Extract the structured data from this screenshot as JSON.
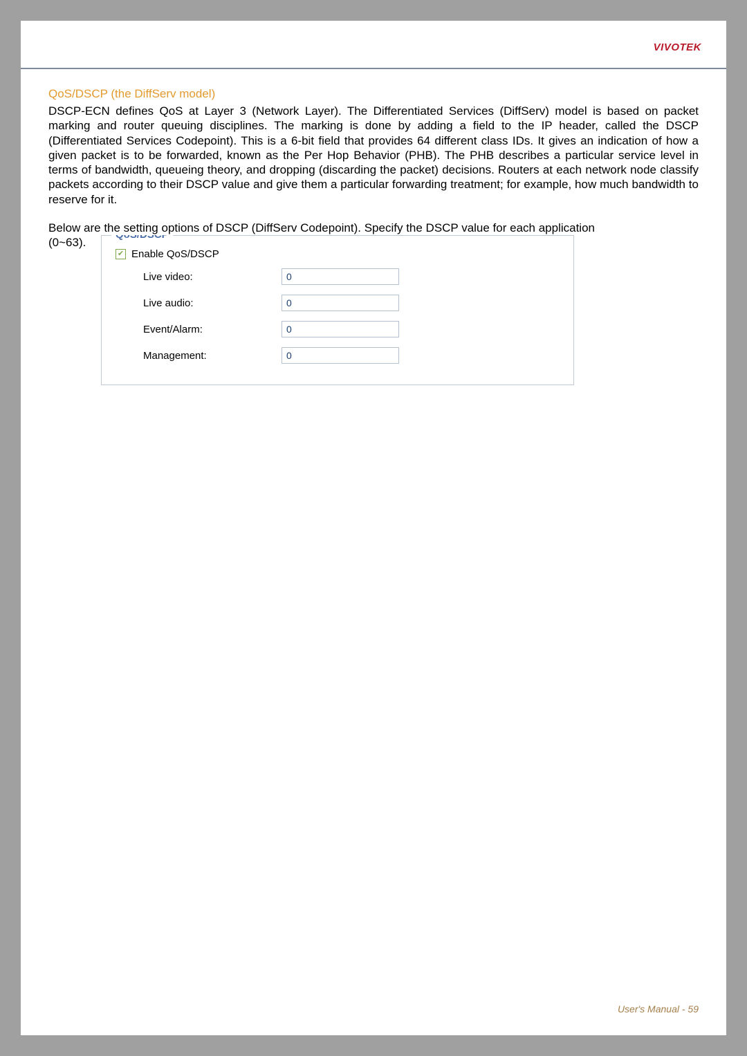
{
  "colors": {
    "page_bg": "#a0a0a0",
    "sheet_bg": "#ffffff",
    "brand": "#ba1b2b",
    "header_rule": "#7d8aa0",
    "heading": "#e39a2f",
    "body_text": "#000000",
    "fieldset_border": "#bfc8d0",
    "legend": "#4b6ea9",
    "checkbox_border": "#7fa84d",
    "checkmark": "#7fa84d",
    "input_border": "#b3c1d1",
    "input_text": "#1a3f6e",
    "footer": "#a47f4a"
  },
  "header": {
    "brand": "VIVOTEK"
  },
  "section": {
    "heading": "QoS/DSCP (the DiffServ model)",
    "para1": "DSCP-ECN defines QoS at Layer 3 (Network Layer). The Differentiated Services (DiffServ) model is based on packet marking and router queuing disciplines. The marking is done by adding a field to the IP header, called the DSCP (Differentiated Services Codepoint). This is a 6-bit field that provides 64 different class IDs. It gives an indication of how a given packet is to be forwarded, known as the Per Hop Behavior (PHB). The PHB describes a particular service level in terms of bandwidth, queueing theory, and dropping (discarding the packet) decisions. Routers at each network node classify packets according to their DSCP value and give them a particular forwarding treatment; for example, how much bandwidth to reserve for it.",
    "para2_main": "Below are the setting options of DSCP (DiffServ Codepoint). Specify the DSCP value for each application",
    "para2_prefix": "(0~63)."
  },
  "fieldset": {
    "legend": "QoS/DSCP",
    "checkbox_label": "Enable QoS/DSCP",
    "checked": true,
    "fields": [
      {
        "label": "Live video:",
        "value": "0"
      },
      {
        "label": "Live audio:",
        "value": "0"
      },
      {
        "label": "Event/Alarm:",
        "value": "0"
      },
      {
        "label": "Management:",
        "value": "0"
      }
    ]
  },
  "footer": {
    "text": "User's Manual - 59"
  }
}
